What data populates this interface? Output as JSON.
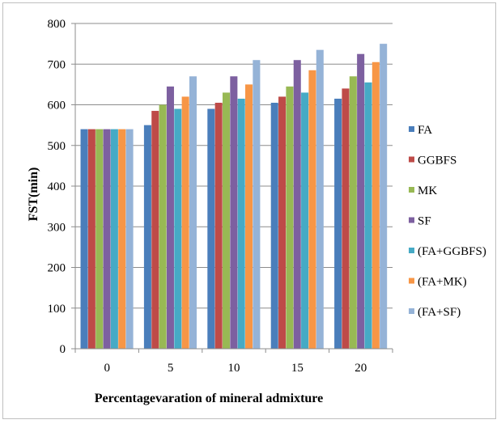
{
  "chart_data": {
    "type": "bar",
    "title": "",
    "xlabel": "Percentagevaration of mineral admixture",
    "ylabel": "FST(min)",
    "categories": [
      "0",
      "5",
      "10",
      "15",
      "20"
    ],
    "ylim": [
      0,
      800
    ],
    "yticks": [
      0,
      100,
      200,
      300,
      400,
      500,
      600,
      700,
      800
    ],
    "grid": true,
    "legend_position": "right",
    "series": [
      {
        "name": "FA",
        "color": "#4a7ebb",
        "values": [
          540,
          550,
          590,
          605,
          615
        ]
      },
      {
        "name": "GGBFS",
        "color": "#be4b48",
        "values": [
          540,
          585,
          605,
          620,
          640
        ]
      },
      {
        "name": "MK",
        "color": "#98b954",
        "values": [
          540,
          600,
          630,
          645,
          670
        ]
      },
      {
        "name": "SF",
        "color": "#7d60a0",
        "values": [
          540,
          645,
          670,
          710,
          725
        ]
      },
      {
        "name": "(FA+GGBFS)",
        "color": "#46aac5",
        "values": [
          540,
          590,
          615,
          630,
          655
        ]
      },
      {
        "name": "(FA+MK)",
        "color": "#f79646",
        "values": [
          540,
          620,
          650,
          685,
          705
        ]
      },
      {
        "name": "(FA+SF)",
        "color": "#95b3d7",
        "values": [
          540,
          670,
          710,
          735,
          750
        ]
      }
    ]
  }
}
